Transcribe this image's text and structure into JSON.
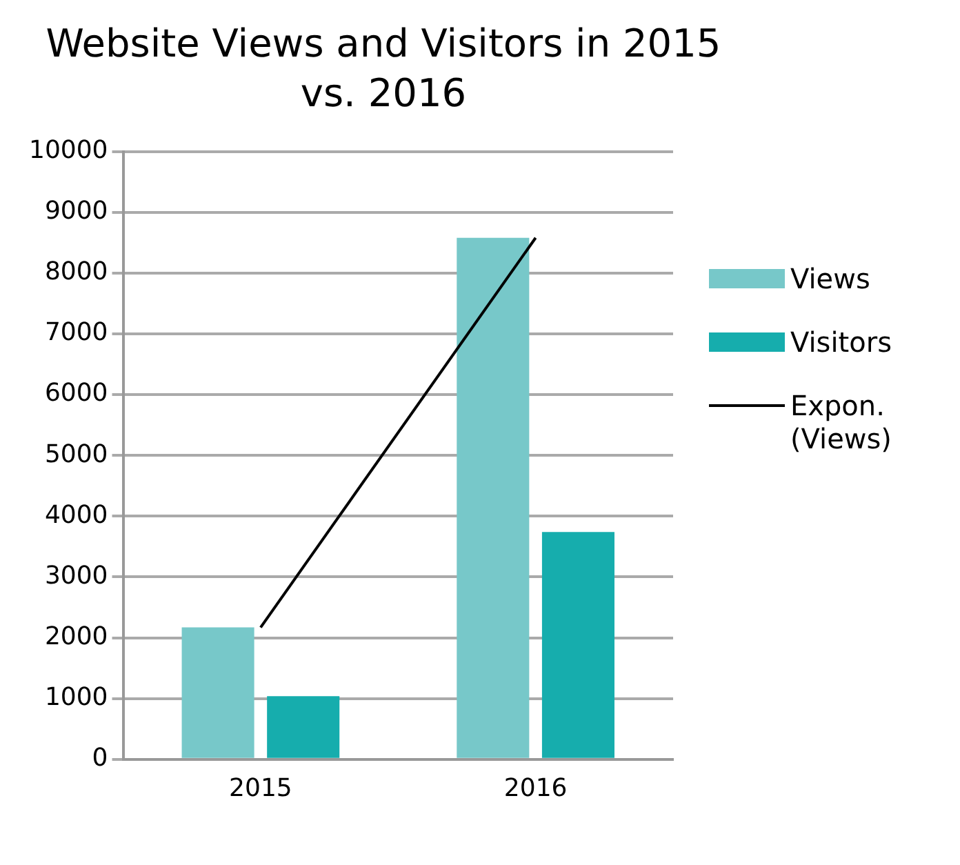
{
  "chart_data": {
    "type": "bar",
    "title": "Website Views and Visitors in 2015 vs. 2016",
    "categories": [
      "2015",
      "2016"
    ],
    "series": [
      {
        "name": "Views",
        "color": "#77c8c9",
        "values": [
          2170,
          8580
        ]
      },
      {
        "name": "Visitors",
        "color": "#16adad",
        "values": [
          1040,
          3740
        ]
      },
      {
        "name": "Expon. (Views)",
        "type": "line",
        "color": "#000000",
        "values": [
          2170,
          8580
        ]
      }
    ],
    "ylim": [
      0,
      10000
    ],
    "yticks": [
      0,
      1000,
      2000,
      3000,
      4000,
      5000,
      6000,
      7000,
      8000,
      9000,
      10000
    ],
    "grid": "y",
    "legend": "right",
    "marker": "none"
  }
}
